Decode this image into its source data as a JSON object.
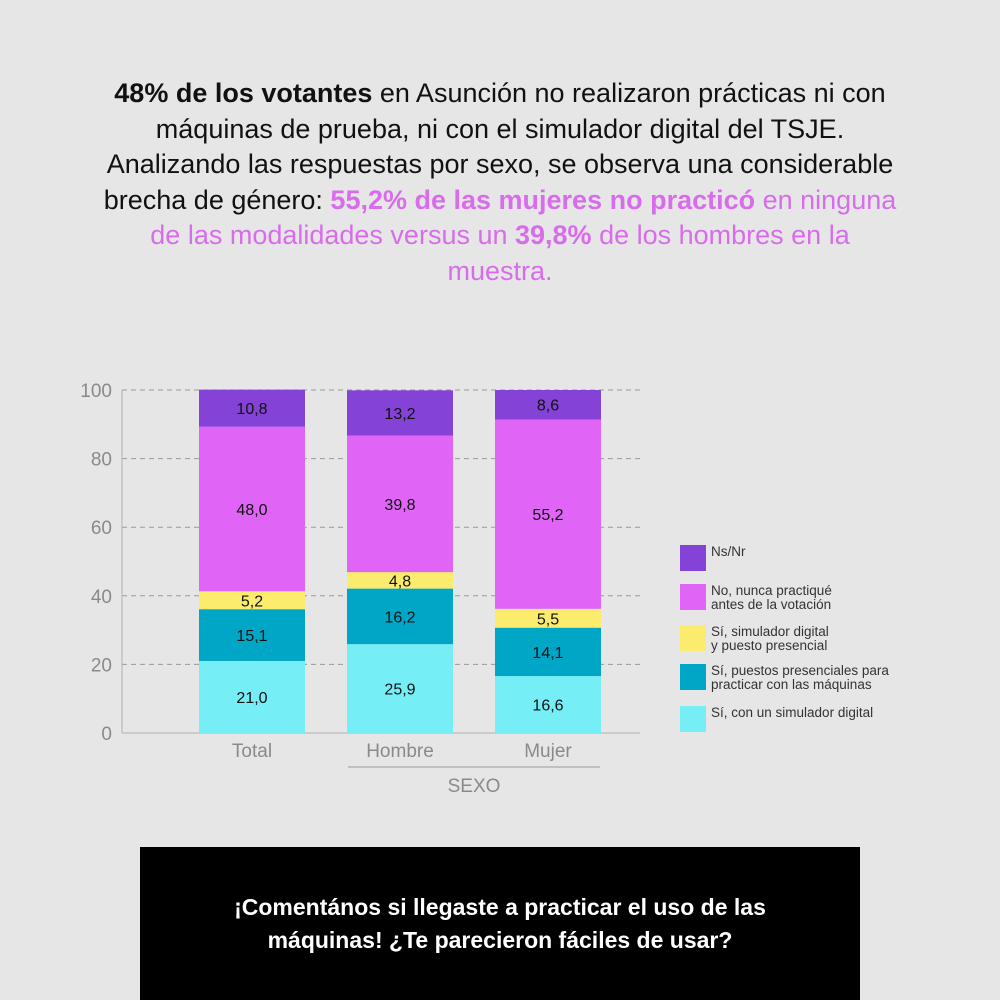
{
  "headline": {
    "s1": "48% de los votantes",
    "s2": " en Asunción no realizaron prácticas ni con máquinas de prueba, ni con el simulador digital del TSJE. Analizando las respuestas por sexo, se observa una considerable brecha de género: ",
    "s3": "55,2% de las mujeres no practicó",
    "s4": " en ninguna de las modalidades versus un ",
    "s5": "39,8%",
    "s6": " de los hombres en la muestra."
  },
  "chart_data": {
    "type": "bar",
    "stacked": true,
    "categories": [
      "Total",
      "Hombre",
      "Mujer"
    ],
    "group_label": "SEXO",
    "grouped_categories": [
      "Hombre",
      "Mujer"
    ],
    "ylim": [
      0,
      100
    ],
    "yticks": [
      0,
      20,
      40,
      60,
      80,
      100
    ],
    "grid": true,
    "legend_position": "right",
    "series": [
      {
        "name": "Sí, con un simulador digital",
        "color": "#76eef6",
        "values": [
          21.0,
          25.9,
          16.6
        ],
        "labels": [
          "21,0",
          "25,9",
          "16,6"
        ]
      },
      {
        "name": "Sí, puestos presenciales para practicar con las máquinas",
        "color": "#00a6c5",
        "values": [
          15.1,
          16.2,
          14.1
        ],
        "labels": [
          "15,1",
          "16,2",
          "14,1"
        ]
      },
      {
        "name": "Sí, simulador digital y puesto presencial",
        "color": "#fcec6e",
        "values": [
          5.2,
          4.8,
          5.5
        ],
        "labels": [
          "5,2",
          "4,8",
          "5,5"
        ]
      },
      {
        "name": "No, nunca practiqué antes de la votación",
        "color": "#e065f7",
        "values": [
          48.0,
          39.8,
          55.2
        ],
        "labels": [
          "48,0",
          "39,8",
          "55,2"
        ]
      },
      {
        "name": "Ns/Nr",
        "color": "#8442d6",
        "values": [
          10.8,
          13.2,
          8.6
        ],
        "labels": [
          "10,8",
          "13,2",
          "8,6"
        ]
      }
    ],
    "legend": [
      {
        "lines": [
          "Ns/Nr"
        ],
        "color": "#8442d6"
      },
      {
        "lines": [
          "No, nunca practiqué",
          "antes de la votación"
        ],
        "color": "#e065f7"
      },
      {
        "lines": [
          "Sí, simulador digital",
          "y puesto presencial"
        ],
        "color": "#fcec6e"
      },
      {
        "lines": [
          "Sí, puestos presenciales para",
          "practicar con las máquinas"
        ],
        "color": "#00a6c5"
      },
      {
        "lines": [
          "Sí, con un simulador digital"
        ],
        "color": "#76eef6"
      }
    ]
  },
  "cta": {
    "text": "¡Comentános si llegaste a practicar el uso de las máquinas! ¿Te parecieron fáciles de usar?"
  }
}
